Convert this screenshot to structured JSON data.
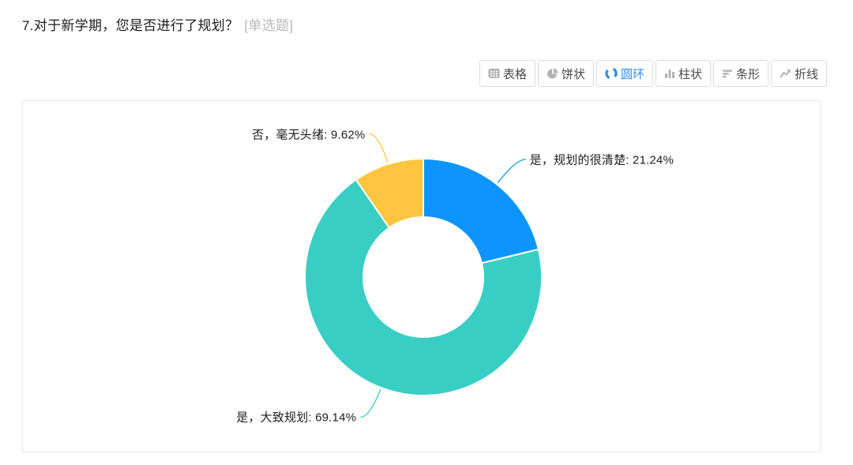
{
  "page": {
    "title": "7.对于新学期，您是否进行了规划？",
    "title_tag": "[单选题]"
  },
  "toolbar": {
    "active_color": "#2d8cf0",
    "inactive_icon_color": "#b3b3b3",
    "buttons": [
      {
        "label": "表格",
        "icon": "table-icon",
        "active": false
      },
      {
        "label": "饼状",
        "icon": "pie-icon",
        "active": false
      },
      {
        "label": "圆环",
        "icon": "donut-icon",
        "active": true
      },
      {
        "label": "柱状",
        "icon": "column-icon",
        "active": false
      },
      {
        "label": "条形",
        "icon": "bar-icon",
        "active": false
      },
      {
        "label": "折线",
        "icon": "line-icon",
        "active": false
      }
    ]
  },
  "chart_data": {
    "type": "pie",
    "subtype": "donut",
    "title": "7.对于新学期，您是否进行了规划？",
    "categories": [
      "是，规划的很清楚",
      "是，大致规划",
      "否，毫无头绪"
    ],
    "values": [
      21.24,
      69.14,
      9.62
    ],
    "unit": "%",
    "labels": [
      "是，规划的很清楚: 21.24%",
      "是，大致规划: 69.14%",
      "否，毫无头绪: 9.62%"
    ],
    "colors": [
      "#0d95ff",
      "#39cec4",
      "#ffc53e"
    ],
    "start_angle_deg": 0,
    "clockwise": true,
    "legend_position": "none",
    "label_style": "outside-leader-lines"
  }
}
